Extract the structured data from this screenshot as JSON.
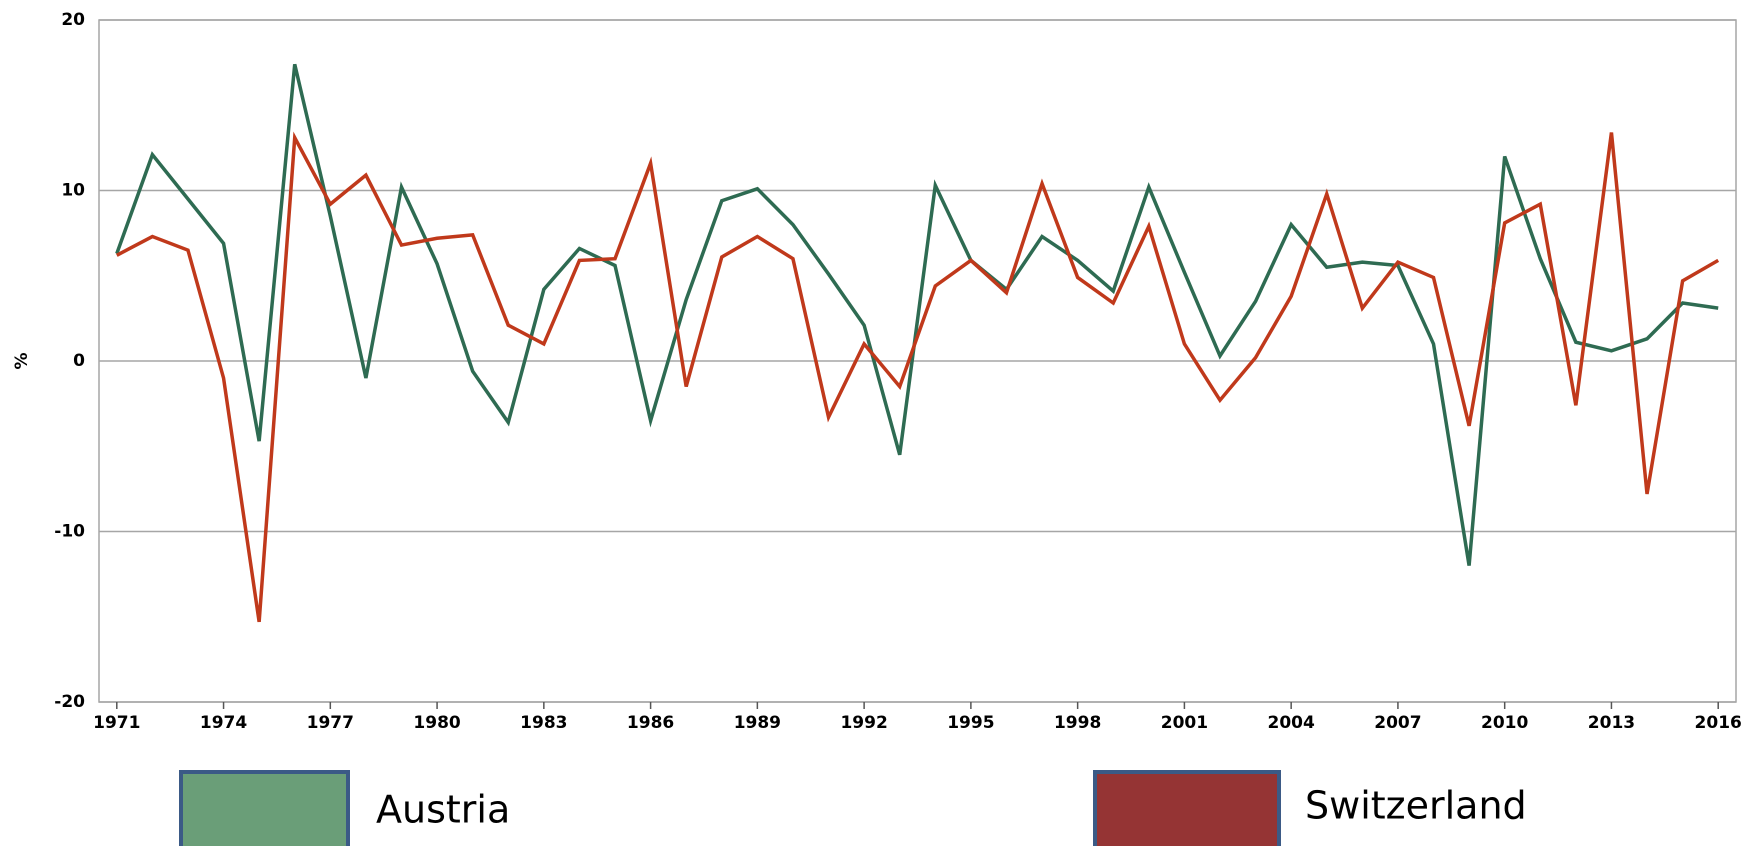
{
  "chart_data": {
    "type": "line",
    "y_label": "%",
    "x": [
      1971,
      1972,
      1973,
      1974,
      1975,
      1976,
      1977,
      1978,
      1979,
      1980,
      1981,
      1982,
      1983,
      1984,
      1985,
      1986,
      1987,
      1988,
      1989,
      1990,
      1991,
      1992,
      1993,
      1994,
      1995,
      1996,
      1997,
      1998,
      1999,
      2000,
      2001,
      2002,
      2003,
      2004,
      2005,
      2006,
      2007,
      2008,
      2009,
      2010,
      2011,
      2012,
      2013,
      2014,
      2015,
      2016
    ],
    "series": [
      {
        "name": "Austria",
        "color": "#2e6b52",
        "legend_color": "#6a9e78",
        "values": [
          6.3,
          12.1,
          9.5,
          6.9,
          -4.7,
          17.4,
          8.5,
          -1.0,
          10.2,
          5.7,
          -0.6,
          -3.6,
          4.2,
          6.6,
          5.6,
          -3.5,
          3.6,
          9.4,
          10.1,
          8.0,
          5.1,
          2.1,
          -5.5,
          10.3,
          5.9,
          4.2,
          7.3,
          5.9,
          4.1,
          10.2,
          5.2,
          0.3,
          3.5,
          8.0,
          5.5,
          5.8,
          5.6,
          1.0,
          -12.0,
          12.0,
          6.0,
          1.1,
          0.6,
          1.3,
          3.4,
          3.1
        ]
      },
      {
        "name": "Switzerland",
        "color": "#c0391b",
        "legend_color": "#953434",
        "values": [
          6.2,
          7.3,
          6.5,
          -1.0,
          -15.3,
          13.1,
          9.2,
          10.9,
          6.8,
          7.2,
          7.4,
          2.1,
          1.0,
          5.9,
          6.0,
          11.6,
          -1.5,
          6.1,
          7.3,
          6.0,
          -3.3,
          1.0,
          -1.5,
          4.4,
          5.9,
          4.0,
          10.4,
          4.9,
          3.4,
          7.9,
          1.0,
          -2.3,
          0.2,
          3.8,
          9.8,
          3.1,
          5.8,
          4.9,
          -3.8,
          8.1,
          9.2,
          -2.6,
          13.4,
          -7.8,
          4.7,
          5.9
        ]
      }
    ],
    "xlim": [
      1970.5,
      2016.5
    ],
    "xticks": [
      1971,
      1974,
      1977,
      1980,
      1983,
      1986,
      1989,
      1992,
      1995,
      1998,
      2001,
      2004,
      2007,
      2010,
      2013,
      2016
    ],
    "ylim": [
      -20,
      20
    ],
    "yticks": [
      -20,
      -10,
      0,
      10,
      20
    ],
    "grid": true
  }
}
